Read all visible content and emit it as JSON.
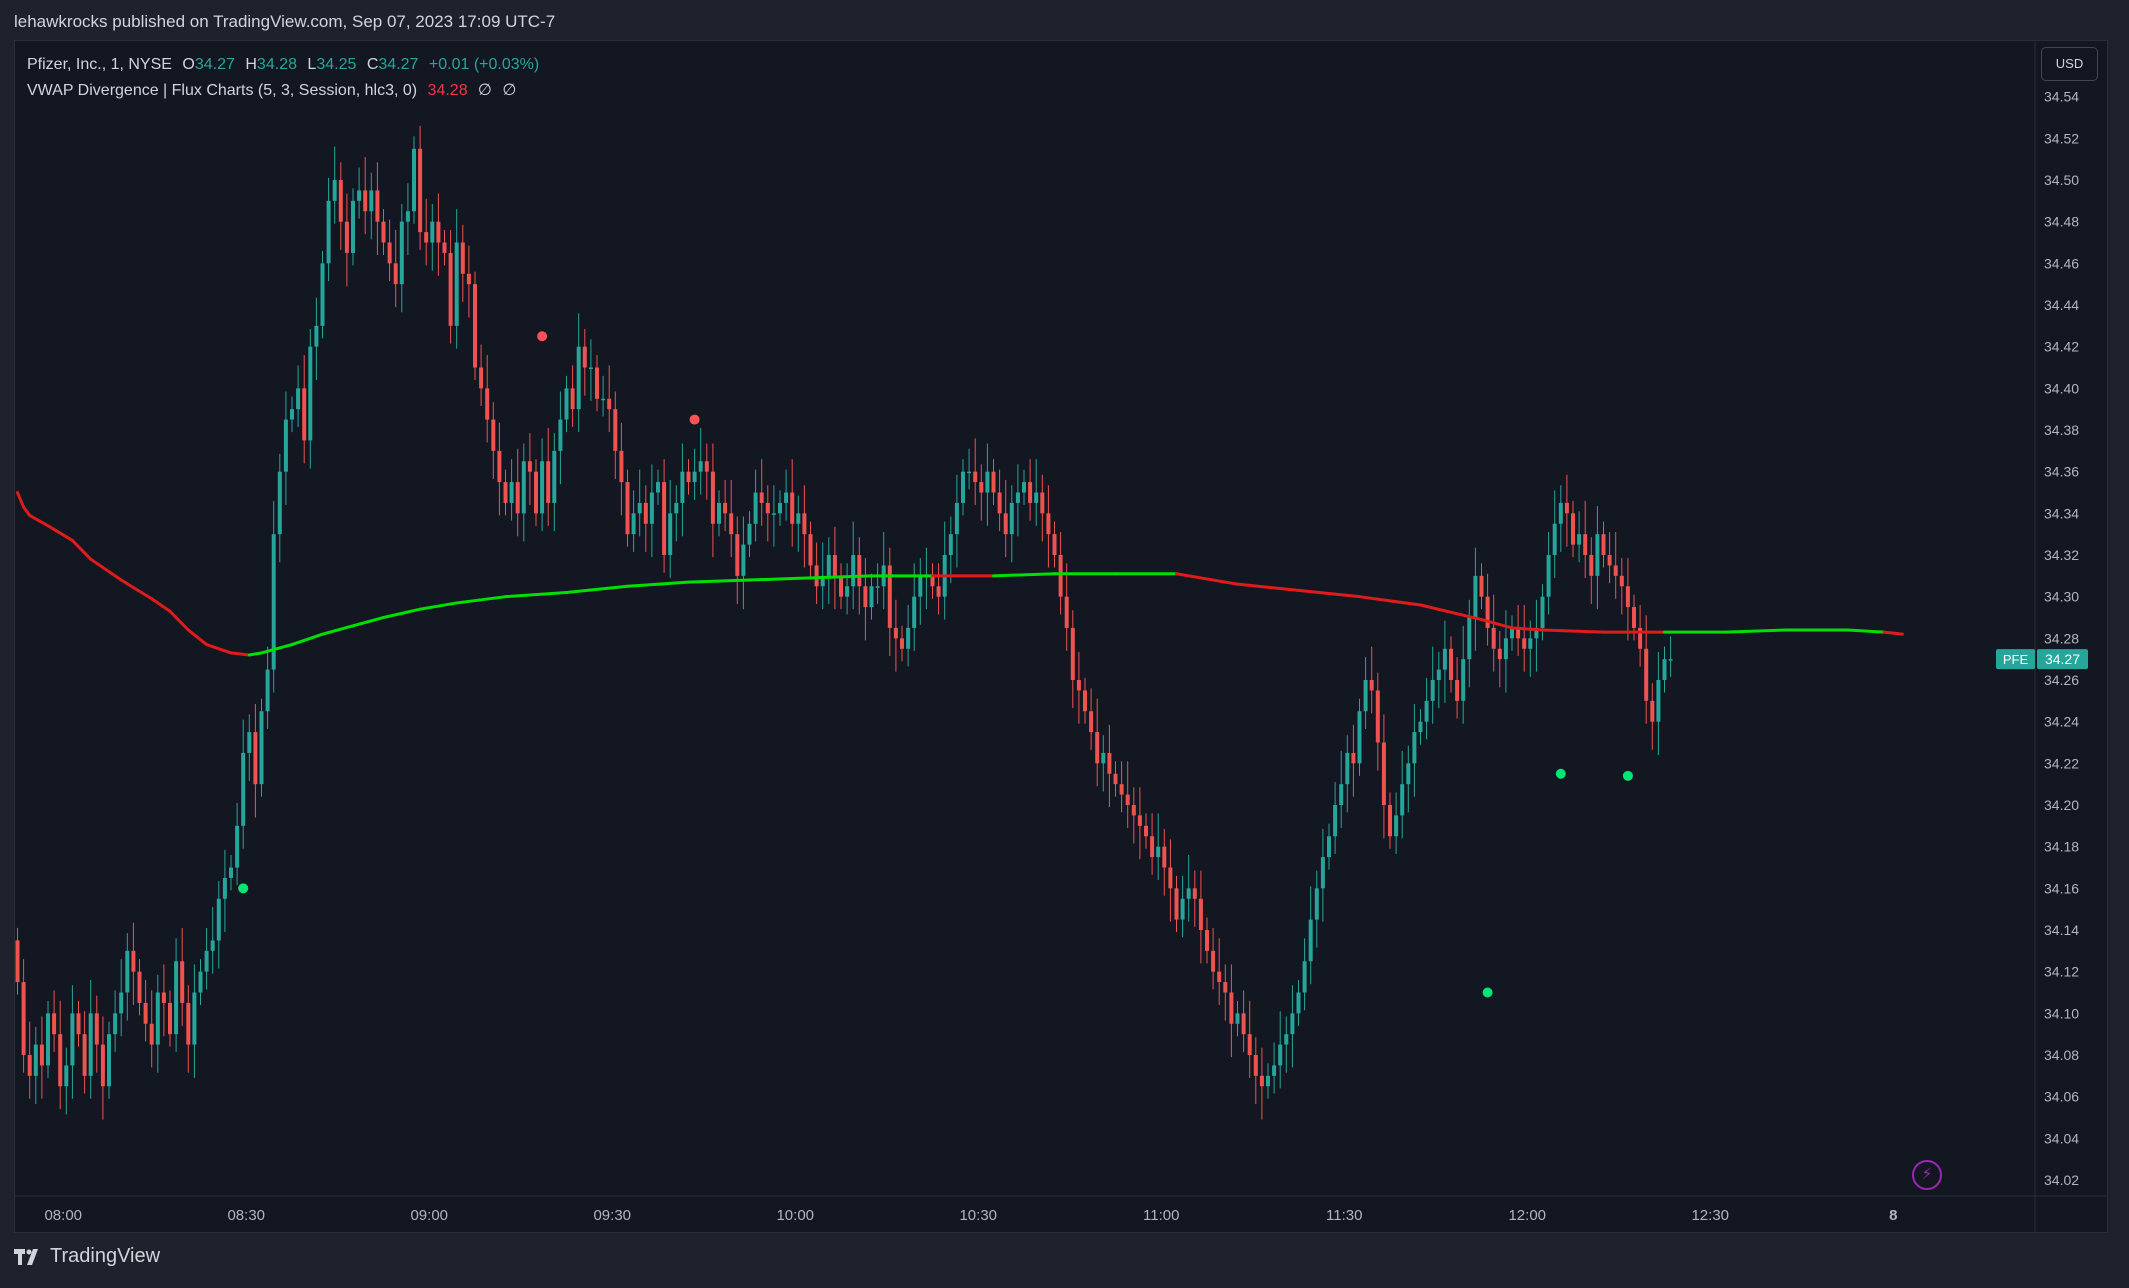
{
  "header": {
    "publisher_line": "lehawkrocks published on TradingView.com, Sep 07, 2023 17:09 UTC-7"
  },
  "legend": {
    "symbol_line": {
      "name": "Pfizer, Inc., 1, NYSE",
      "o_label": "O",
      "o": "34.27",
      "h_label": "H",
      "h": "34.28",
      "l_label": "L",
      "l": "34.25",
      "c_label": "C",
      "c": "34.27",
      "change": "+0.01 (+0.03%)"
    },
    "indicator_line": {
      "name": "VWAP Divergence | Flux Charts (5, 3, Session, hlc3, 0)",
      "value": "34.28",
      "extra1": "∅",
      "extra2": "∅"
    }
  },
  "currency_button": "USD",
  "price_tag": {
    "symbol": "PFE",
    "price": "34.27"
  },
  "footer": {
    "brand": "TradingView"
  },
  "colors": {
    "up": "#26a69a",
    "down": "#ef5350",
    "vwap_above": "#00e000",
    "vwap_below": "#e01b1b",
    "signal_bull": "#00e676",
    "signal_bear": "#ff5252"
  },
  "chart_data": {
    "type": "candlestick",
    "ylim": [
      34.01,
      34.55
    ],
    "y_ticks": [
      "34.54",
      "34.52",
      "34.50",
      "34.48",
      "34.46",
      "34.44",
      "34.42",
      "34.40",
      "34.38",
      "34.36",
      "34.34",
      "34.32",
      "34.30",
      "34.28",
      "34.26",
      "34.24",
      "34.22",
      "34.20",
      "34.18",
      "34.16",
      "34.14",
      "34.12",
      "34.10",
      "34.08",
      "34.06",
      "34.04",
      "34.02"
    ],
    "x_ticks": [
      {
        "label": "08:00",
        "bar": 7.5
      },
      {
        "label": "08:30",
        "bar": 37.5
      },
      {
        "label": "09:00",
        "bar": 67.5
      },
      {
        "label": "09:30",
        "bar": 97.5
      },
      {
        "label": "10:00",
        "bar": 127.5
      },
      {
        "label": "10:30",
        "bar": 157.5
      },
      {
        "label": "11:00",
        "bar": 187.5
      },
      {
        "label": "11:30",
        "bar": 217.5
      },
      {
        "label": "12:00",
        "bar": 247.5
      },
      {
        "label": "12:30",
        "bar": 277.5
      },
      {
        "label": "8",
        "bar": 307.5
      }
    ],
    "close": [
      34.115,
      34.08,
      34.07,
      34.085,
      34.075,
      34.1,
      34.09,
      34.065,
      34.075,
      34.1,
      34.09,
      34.07,
      34.1,
      34.085,
      34.065,
      34.09,
      34.1,
      34.11,
      34.13,
      34.12,
      34.105,
      34.095,
      34.085,
      34.11,
      34.105,
      34.09,
      34.125,
      34.105,
      34.085,
      34.11,
      34.12,
      34.13,
      34.135,
      34.155,
      34.165,
      34.17,
      34.19,
      34.225,
      34.235,
      34.21,
      34.245,
      34.265,
      34.33,
      34.36,
      34.385,
      34.39,
      34.4,
      34.375,
      34.42,
      34.43,
      34.46,
      34.49,
      34.5,
      34.48,
      34.465,
      34.49,
      34.495,
      34.485,
      34.495,
      34.48,
      34.47,
      34.46,
      34.45,
      34.48,
      34.485,
      34.515,
      34.475,
      34.47,
      34.48,
      34.47,
      34.465,
      34.43,
      34.47,
      34.455,
      34.45,
      34.41,
      34.4,
      34.385,
      34.37,
      34.355,
      34.345,
      34.355,
      34.34,
      34.365,
      34.36,
      34.34,
      34.365,
      34.345,
      34.37,
      34.385,
      34.4,
      34.39,
      34.42,
      34.41,
      34.41,
      34.395,
      34.395,
      34.39,
      34.37,
      34.355,
      34.33,
      34.34,
      34.345,
      34.335,
      34.35,
      34.355,
      34.32,
      34.34,
      34.345,
      34.36,
      34.355,
      34.36,
      34.365,
      34.36,
      34.335,
      34.345,
      34.34,
      34.33,
      34.31,
      34.325,
      34.335,
      34.35,
      34.345,
      34.34,
      34.34,
      34.345,
      34.35,
      34.335,
      34.34,
      34.33,
      34.315,
      34.305,
      34.31,
      34.32,
      34.31,
      34.3,
      34.305,
      34.32,
      34.305,
      34.295,
      34.305,
      34.305,
      34.315,
      34.285,
      34.28,
      34.275,
      34.285,
      34.3,
      34.31,
      34.31,
      34.305,
      34.3,
      34.32,
      34.33,
      34.345,
      34.36,
      34.36,
      34.355,
      34.35,
      34.36,
      34.35,
      34.34,
      34.33,
      34.345,
      34.35,
      34.355,
      34.345,
      34.35,
      34.34,
      34.33,
      34.32,
      34.3,
      34.285,
      34.26,
      34.255,
      34.245,
      34.235,
      34.22,
      34.225,
      34.215,
      34.21,
      34.205,
      34.2,
      34.195,
      34.19,
      34.185,
      34.175,
      34.18,
      34.17,
      34.16,
      34.145,
      34.155,
      34.16,
      34.155,
      34.14,
      34.13,
      34.12,
      34.115,
      34.11,
      34.095,
      34.1,
      34.09,
      34.08,
      34.07,
      34.065,
      34.07,
      34.075,
      34.085,
      34.09,
      34.1,
      34.11,
      34.125,
      34.145,
      34.16,
      34.175,
      34.185,
      34.2,
      34.21,
      34.225,
      34.22,
      34.245,
      34.26,
      34.255,
      34.23,
      34.2,
      34.185,
      34.195,
      34.21,
      34.22,
      34.235,
      34.24,
      34.25,
      34.26,
      34.265,
      34.275,
      34.26,
      34.25,
      34.27,
      34.29,
      34.31,
      34.3,
      34.285,
      34.275,
      34.27,
      34.28,
      34.285,
      34.28,
      34.275,
      34.28,
      34.285,
      34.3,
      34.32,
      34.335,
      34.345,
      34.34,
      34.325,
      34.33,
      34.32,
      34.31,
      34.33,
      34.32,
      34.315,
      34.31,
      34.305,
      34.295,
      34.285,
      34.275,
      34.25,
      34.24,
      34.26,
      34.27,
      34.27
    ],
    "vwap": {
      "points": [
        [
          0,
          34.35
        ],
        [
          1,
          34.343
        ],
        [
          2,
          34.339
        ],
        [
          5,
          34.334
        ],
        [
          9,
          34.327
        ],
        [
          12,
          34.318
        ],
        [
          17,
          34.308
        ],
        [
          22,
          34.299
        ],
        [
          25,
          34.293
        ],
        [
          28,
          34.284
        ],
        [
          31,
          34.277
        ],
        [
          35,
          34.273
        ],
        [
          38,
          34.272
        ],
        [
          40,
          34.273
        ],
        [
          45,
          34.277
        ],
        [
          50,
          34.282
        ],
        [
          55,
          34.286
        ],
        [
          60,
          34.29
        ],
        [
          66,
          34.294
        ],
        [
          72,
          34.297
        ],
        [
          80,
          34.3
        ],
        [
          90,
          34.302
        ],
        [
          100,
          34.305
        ],
        [
          110,
          34.307
        ],
        [
          120,
          34.308
        ],
        [
          130,
          34.309
        ],
        [
          140,
          34.31
        ],
        [
          150,
          34.31
        ],
        [
          160,
          34.31
        ],
        [
          170,
          34.311
        ],
        [
          180,
          34.311
        ],
        [
          190,
          34.311
        ],
        [
          200,
          34.306
        ],
        [
          210,
          34.303
        ],
        [
          220,
          34.3
        ],
        [
          230,
          34.296
        ],
        [
          240,
          34.289
        ],
        [
          245,
          34.285
        ],
        [
          250,
          34.284
        ],
        [
          260,
          34.283
        ],
        [
          270,
          34.283
        ],
        [
          280,
          34.283
        ],
        [
          290,
          34.284
        ],
        [
          300,
          34.284
        ],
        [
          306,
          34.283
        ],
        [
          309,
          34.282
        ]
      ],
      "above_close_ranges": [
        [
          38,
          150
        ],
        [
          161,
          187
        ],
        [
          268,
          306
        ]
      ]
    },
    "signals": [
      {
        "bar": 37,
        "price": 34.16,
        "type": "bull"
      },
      {
        "bar": 86,
        "price": 34.425,
        "type": "bear"
      },
      {
        "bar": 111,
        "price": 34.385,
        "type": "bear"
      },
      {
        "bar": 241,
        "price": 34.11,
        "type": "bull"
      },
      {
        "bar": 253,
        "price": 34.215,
        "type": "bull"
      },
      {
        "bar": 264,
        "price": 34.214,
        "type": "bull"
      }
    ]
  }
}
